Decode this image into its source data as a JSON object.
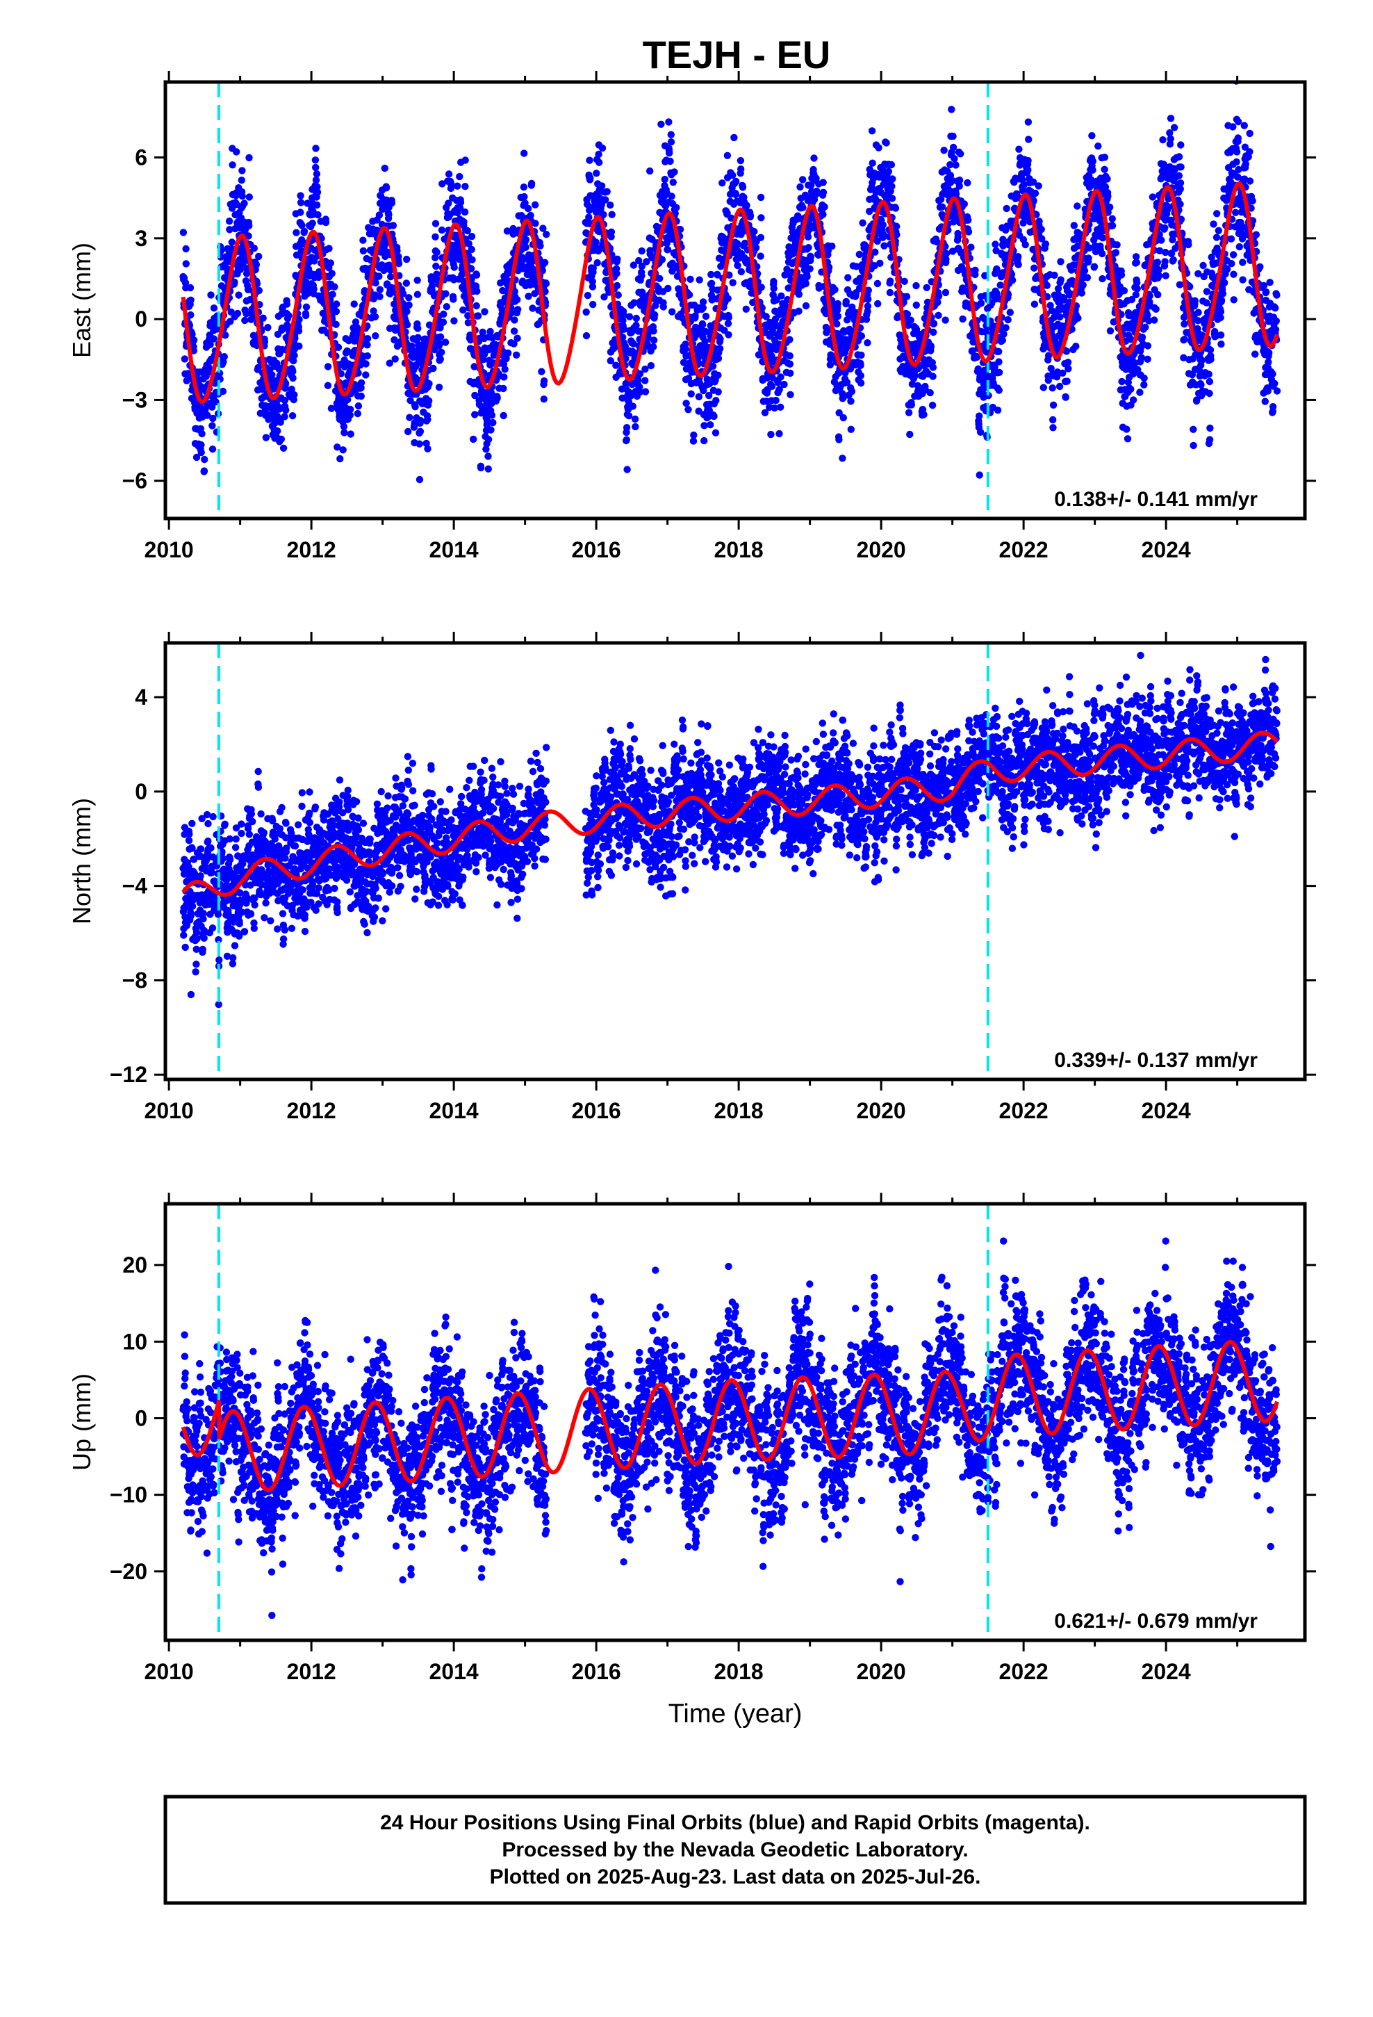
{
  "title": "TEJH - EU",
  "colors": {
    "final_orbits": "#0000ff",
    "model": "#ff0000",
    "offsets": "#00e5ee",
    "frame": "#000000"
  },
  "chart_data": [
    {
      "type": "scatter",
      "component": "east",
      "ylabel": "East (mm)",
      "xlabel": "",
      "xlim": [
        2009.95,
        2025.95
      ],
      "ylim": [
        -7.4,
        8.8
      ],
      "xticks": [
        2010,
        2012,
        2014,
        2016,
        2018,
        2020,
        2022,
        2024
      ],
      "yticks": [
        -6,
        -3,
        0,
        3,
        6
      ],
      "velocity_text": "0.138+/- 0.141 mm/yr",
      "offset_epochs": [
        2010.7,
        2021.5
      ],
      "data_span": [
        2010.2,
        2025.56
      ],
      "gap": [
        2015.3,
        2015.85
      ],
      "model": {
        "mean_at_2010": -0.2,
        "velocity": 0.138,
        "annual_amp": 3.0,
        "annual_phase": 1.57,
        "semiannual_amp": 0.3,
        "semiannual_phase": 0.4
      },
      "noise_sd": 1.3,
      "grid": false
    },
    {
      "type": "scatter",
      "component": "north",
      "ylabel": "North (mm)",
      "xlabel": "",
      "xlim": [
        2009.95,
        2025.95
      ],
      "ylim": [
        -12.2,
        6.3
      ],
      "xticks": [
        2010,
        2012,
        2014,
        2016,
        2018,
        2020,
        2022,
        2024
      ],
      "yticks": [
        -12,
        -8,
        -4,
        0,
        4
      ],
      "velocity_text": "0.339+/- 0.137 mm/yr",
      "offset_epochs": [
        2010.7,
        2021.5
      ],
      "data_span": [
        2010.2,
        2025.56
      ],
      "gap": [
        2015.3,
        2015.85
      ],
      "model": {
        "trend_points": [
          [
            2010.2,
            -4.6
          ],
          [
            2011.0,
            -3.6
          ],
          [
            2013.0,
            -2.5
          ],
          [
            2015.0,
            -1.5
          ],
          [
            2017.0,
            -0.9
          ],
          [
            2019.0,
            -0.4
          ],
          [
            2021.0,
            0.2
          ],
          [
            2021.5,
            0.9
          ],
          [
            2023.0,
            1.3
          ],
          [
            2025.56,
            2.0
          ]
        ],
        "annual_amp": 0.55,
        "annual_phase": -0.6
      },
      "noise_sd": 1.2,
      "grid": false
    },
    {
      "type": "scatter",
      "component": "up",
      "ylabel": "Up (mm)",
      "xlabel": "Time (year)",
      "xlim": [
        2009.95,
        2025.95
      ],
      "ylim": [
        -29,
        28
      ],
      "xticks": [
        2010,
        2012,
        2014,
        2016,
        2018,
        2020,
        2022,
        2024
      ],
      "yticks": [
        -20,
        -10,
        0,
        10,
        20
      ],
      "velocity_text": "0.621+/- 0.679 mm/yr",
      "offset_epochs": [
        2010.7,
        2021.5
      ],
      "data_span": [
        2010.2,
        2025.56
      ],
      "gap": [
        2015.3,
        2015.85
      ],
      "model": {
        "trend_points": [
          [
            2010.2,
            0.5
          ],
          [
            2010.7,
            0.5
          ],
          [
            2010.71,
            -4.5
          ],
          [
            2015.0,
            -2.0
          ],
          [
            2018.0,
            -0.3
          ],
          [
            2021.0,
            0.8
          ],
          [
            2021.5,
            2.8
          ],
          [
            2025.56,
            5.0
          ]
        ],
        "annual_amp": 5.3,
        "annual_phase": 2.2
      },
      "noise_sd": 4.8,
      "grid": false
    }
  ],
  "footer": {
    "lines": [
      "24 Hour Positions Using Final Orbits (blue) and Rapid Orbits (magenta).",
      "Processed by the Nevada Geodetic Laboratory.",
      "Plotted on 2025-Aug-23. Last data on 2025-Jul-26."
    ]
  }
}
